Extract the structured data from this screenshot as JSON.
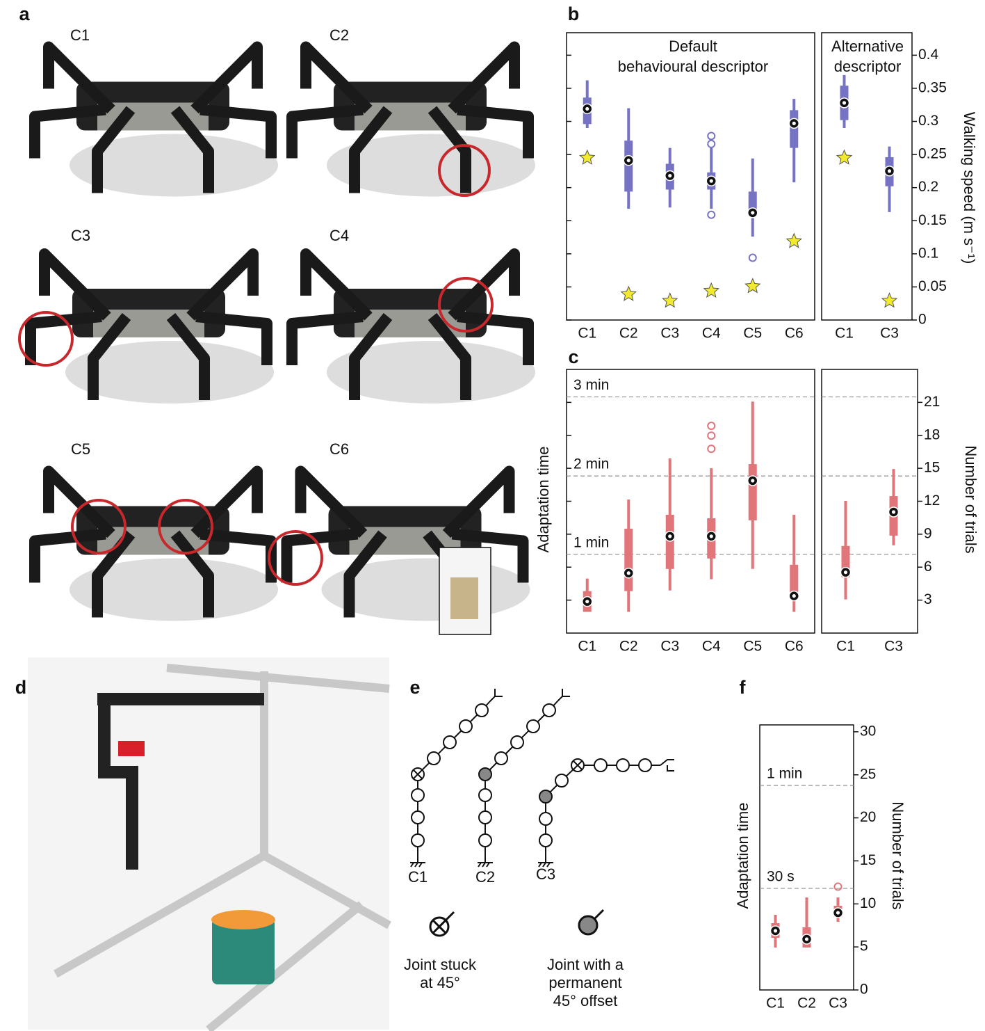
{
  "panel_labels": [
    "a",
    "b",
    "c",
    "d",
    "e",
    "f"
  ],
  "photos": {
    "conditions": [
      "C1",
      "C2",
      "C3",
      "C4",
      "C5",
      "C6"
    ]
  },
  "chart_data": [
    {
      "type": "box",
      "title": [
        "Default",
        "behavioural descriptor"
      ],
      "categories": [
        "C1",
        "C2",
        "C3",
        "C4",
        "C5",
        "C6"
      ],
      "color": "#7773c4",
      "boxes": [
        {
          "min": 0.29,
          "q1": 0.296,
          "median": 0.319,
          "q3": 0.336,
          "max": 0.362
        },
        {
          "min": 0.168,
          "q1": 0.194,
          "median": 0.241,
          "q3": 0.271,
          "max": 0.32
        },
        {
          "min": 0.17,
          "q1": 0.197,
          "median": 0.218,
          "q3": 0.236,
          "max": 0.26
        },
        {
          "min": 0.168,
          "q1": 0.197,
          "median": 0.21,
          "q3": 0.223,
          "max": 0.26,
          "outliers": [
            0.278,
            0.266,
            0.159
          ]
        },
        {
          "min": 0.126,
          "q1": 0.16,
          "median": 0.162,
          "q3": 0.194,
          "max": 0.244,
          "outliers": [
            0.094
          ]
        },
        {
          "min": 0.208,
          "q1": 0.26,
          "median": 0.297,
          "q3": 0.317,
          "max": 0.334
        }
      ],
      "reference_values": [
        0.245,
        0.039,
        0.029,
        0.044,
        0.051,
        0.119
      ],
      "ylim": [
        0,
        0.434
      ],
      "yticks": [
        0,
        0.05,
        0.1,
        0.15,
        0.2,
        0.25,
        0.3,
        0.35,
        0.4
      ]
    },
    {
      "type": "box",
      "title": [
        "Alternative",
        "descriptor"
      ],
      "categories": [
        "C1",
        "C3"
      ],
      "color": "#7773c4",
      "ylabel": "Walking speed (m s⁻¹)",
      "boxes": [
        {
          "min": 0.29,
          "q1": 0.302,
          "median": 0.328,
          "q3": 0.354,
          "max": 0.37
        },
        {
          "min": 0.163,
          "q1": 0.202,
          "median": 0.225,
          "q3": 0.246,
          "max": 0.262
        }
      ],
      "reference_values": [
        0.245,
        0.029
      ],
      "ylim": [
        0,
        0.434
      ],
      "yticks": [
        0,
        0.05,
        0.1,
        0.15,
        0.2,
        0.25,
        0.3,
        0.35,
        0.4
      ],
      "ytick_labels": true
    },
    {
      "type": "box",
      "time_label": "Adaptation time",
      "categories": [
        "C1",
        "C2",
        "C3",
        "C4",
        "C5",
        "C6"
      ],
      "color": "#e0757a",
      "boxes": [
        {
          "min": 1.93,
          "q1": 1.93,
          "median": 2.87,
          "q3": 3.82,
          "max": 4.96
        },
        {
          "min": 1.93,
          "q1": 3.82,
          "median": 5.46,
          "q3": 9.5,
          "max": 12.16
        },
        {
          "min": 3.88,
          "q1": 5.84,
          "median": 8.81,
          "q3": 10.77,
          "max": 15.9
        },
        {
          "min": 4.9,
          "q1": 6.79,
          "median": 8.81,
          "q3": 10.45,
          "max": 15.0,
          "outliers": [
            18.86,
            17.97,
            16.77
          ]
        },
        {
          "min": 5.84,
          "q1": 10.26,
          "median": 13.87,
          "q3": 15.38,
          "max": 21.07
        },
        {
          "min": 1.93,
          "q1": 3.19,
          "median": 3.38,
          "q3": 6.22,
          "max": 10.77
        }
      ],
      "ylim": [
        0,
        24
      ],
      "yticks": [
        3,
        6,
        9,
        12,
        15,
        18,
        21
      ],
      "hlines": [
        {
          "value": 21.5,
          "label": "3 min"
        },
        {
          "value": 14.3,
          "label": "2 min"
        },
        {
          "value": 7.17,
          "label": "1 min"
        }
      ]
    },
    {
      "type": "box",
      "categories": [
        "C1",
        "C3"
      ],
      "color": "#e0757a",
      "ylabel": "Number of trials",
      "boxes": [
        {
          "min": 3.06,
          "q1": 5.08,
          "median": 5.53,
          "q3": 7.93,
          "max": 12.03
        },
        {
          "min": 7.99,
          "q1": 8.87,
          "median": 11.02,
          "q3": 12.47,
          "max": 14.94
        }
      ],
      "ylim": [
        0,
        24
      ],
      "yticks": [
        3,
        6,
        9,
        12,
        15,
        18,
        21
      ],
      "ytick_labels": true,
      "hlines": [
        21.5,
        14.3,
        7.17
      ]
    },
    {
      "type": "box",
      "time_label": "Adaptation time",
      "ylabel": "Number of trials",
      "categories": [
        "C1",
        "C2",
        "C3"
      ],
      "color": "#e0757a",
      "boxes": [
        {
          "min": 4.93,
          "q1": 6.06,
          "median": 6.87,
          "q3": 7.76,
          "max": 8.73
        },
        {
          "min": 4.93,
          "q1": 4.93,
          "median": 5.9,
          "q3": 7.28,
          "max": 10.75
        },
        {
          "min": 7.92,
          "q1": 8.49,
          "median": 8.97,
          "q3": 9.78,
          "max": 10.75,
          "outliers": [
            12.0
          ]
        }
      ],
      "ylim": [
        0,
        30.8
      ],
      "yticks": [
        0,
        5,
        10,
        15,
        20,
        25,
        30
      ],
      "ytick_labels": true,
      "hlines": [
        {
          "value": 23.77,
          "label": "1 min"
        },
        {
          "value": 11.8,
          "label": "30 s"
        }
      ]
    }
  ],
  "diagram": {
    "configs": [
      "C1",
      "C2",
      "C3"
    ],
    "legend": [
      [
        "Joint stuck",
        "at 45°"
      ],
      [
        "Joint with a",
        "permanent",
        "45° offset"
      ]
    ]
  }
}
